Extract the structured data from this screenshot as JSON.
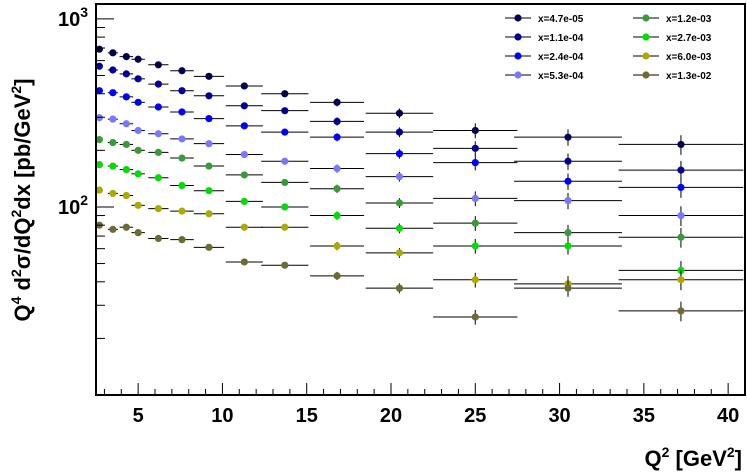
{
  "chart_data": {
    "type": "scatter",
    "title": "",
    "xlabel_parts": [
      "Q",
      "2",
      " [GeV",
      "2",
      "]"
    ],
    "ylabel_parts": [
      "Q",
      "4",
      " d",
      "2",
      "σ/dQ",
      "2",
      "dx [pb/GeV",
      "2",
      "]"
    ],
    "xlim": [
      2.5,
      41
    ],
    "ylim": [
      10,
      1200
    ],
    "y_scale": "log",
    "grid": false,
    "legend_position": "top-right",
    "x_ticks": [
      5,
      10,
      15,
      20,
      25,
      30,
      35,
      40
    ],
    "x_tick_labels": [
      "5",
      "10",
      "15",
      "20",
      "25",
      "30",
      "35",
      "40"
    ],
    "y_major_ticks": [
      {
        "value": 100,
        "base": "10",
        "exp": "2"
      },
      {
        "value": 1000,
        "base": "10",
        "exp": "3"
      }
    ],
    "x": [
      2.7,
      3.5,
      4.3,
      5.0,
      6.2,
      7.6,
      9.2,
      11.3,
      13.7,
      16.8,
      20.5,
      25.0,
      30.5,
      37.2
    ],
    "x_err": [
      0.2,
      0.3,
      0.4,
      0.4,
      0.6,
      0.7,
      0.9,
      1.1,
      1.4,
      1.6,
      2.0,
      2.5,
      3.2,
      3.7
    ],
    "series": [
      {
        "name": "x=4.7e-05",
        "color": "#00004d",
        "values": [
          690,
          660,
          630,
          610,
          570,
          530,
          495,
          440,
          400,
          360,
          315,
          255,
          235,
          215
        ]
      },
      {
        "name": "x=1.1e-04",
        "color": "#000099",
        "values": [
          560,
          535,
          510,
          480,
          450,
          415,
          390,
          345,
          325,
          285,
          250,
          205,
          175,
          157
        ]
      },
      {
        "name": "x=2.4e-04",
        "color": "#0000ff",
        "values": [
          415,
          405,
          385,
          360,
          340,
          320,
          295,
          270,
          250,
          235,
          192,
          172,
          137,
          127
        ]
      },
      {
        "name": "x=5.3e-04",
        "color": "#7777ff",
        "values": [
          298,
          293,
          277,
          255,
          245,
          230,
          217,
          190,
          175,
          160,
          145,
          111,
          108,
          90
        ]
      },
      {
        "name": "x=1.2e-03",
        "color": "#3a993a",
        "values": [
          228,
          220,
          215,
          200,
          195,
          182,
          165,
          148,
          135,
          125,
          105,
          82,
          73,
          69
        ]
      },
      {
        "name": "x=2.7e-03",
        "color": "#00dd00",
        "values": [
          168,
          165,
          158,
          150,
          143,
          130,
          122,
          107,
          100,
          90,
          77,
          62,
          62,
          46
        ]
      },
      {
        "name": "x=6.0e-03",
        "color": "#aaaa00",
        "values": [
          123,
          118,
          115,
          102,
          98,
          95,
          92,
          78,
          78,
          62,
          57,
          41,
          39,
          41
        ]
      },
      {
        "name": "x=1.3e-02",
        "color": "#6b6b33",
        "values": [
          80,
          76,
          78,
          73,
          68,
          67,
          61,
          51,
          49,
          43,
          37,
          26,
          37,
          28
        ]
      }
    ],
    "y_err_frac": [
      0.03,
      0.03,
      0.03,
      0.03,
      0.03,
      0.03,
      0.03,
      0.04,
      0.04,
      0.05,
      0.06,
      0.09,
      0.1,
      0.12
    ]
  }
}
